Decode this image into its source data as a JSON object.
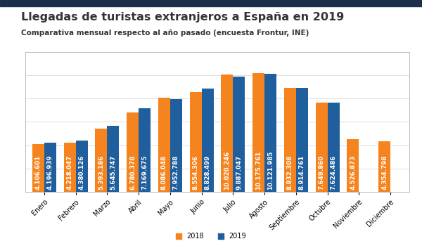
{
  "chart_data": {
    "type": "bar",
    "title": "Llegadas de turistas extranjeros a España en 2019",
    "subtitle": "Comparativa mensual respecto al año pasado (encuesta Frontur, INE)",
    "categories": [
      "Enero",
      "Febrero",
      "Marzo",
      "Abril",
      "Mayo",
      "Junio",
      "Julio",
      "Agosto",
      "Septiembre",
      "Octubre",
      "Noviembre",
      "Diciembre"
    ],
    "series": [
      {
        "name": "2018",
        "color": "#f5841f",
        "values": [
          4106601,
          4218047,
          5393186,
          6780378,
          8086048,
          8554306,
          10020246,
          10175761,
          8932308,
          7649860,
          4526873,
          4354798
        ],
        "value_labels": [
          "4.106.601",
          "4.218.047",
          "5.393.186",
          "6.780.378",
          "8.086.048",
          "8.554.306",
          "10.020.246",
          "10.175.761",
          "8.932.308",
          "7.649.860",
          "4.526.873",
          "4.354.798"
        ]
      },
      {
        "name": "2019",
        "color": "#1f5f9e",
        "values": [
          4196939,
          4380126,
          5645747,
          7169675,
          7952788,
          8828499,
          9887047,
          10121985,
          8914761,
          7624486,
          null,
          null
        ],
        "value_labels": [
          "4.196.939",
          "4.380.126",
          "5.645.747",
          "7.169.675",
          "7.952.788",
          "8.828.499",
          "9.887.047",
          "10.121.985",
          "8.914.761",
          "7.624.486",
          null,
          null
        ]
      }
    ],
    "ylim": [
      0,
      12000000
    ],
    "yticks": [
      0,
      2000000,
      4000000,
      6000000,
      8000000,
      10000000,
      12000000
    ],
    "grid": true,
    "data_labels": true,
    "tick_labels": "x",
    "legend": "lower center"
  }
}
